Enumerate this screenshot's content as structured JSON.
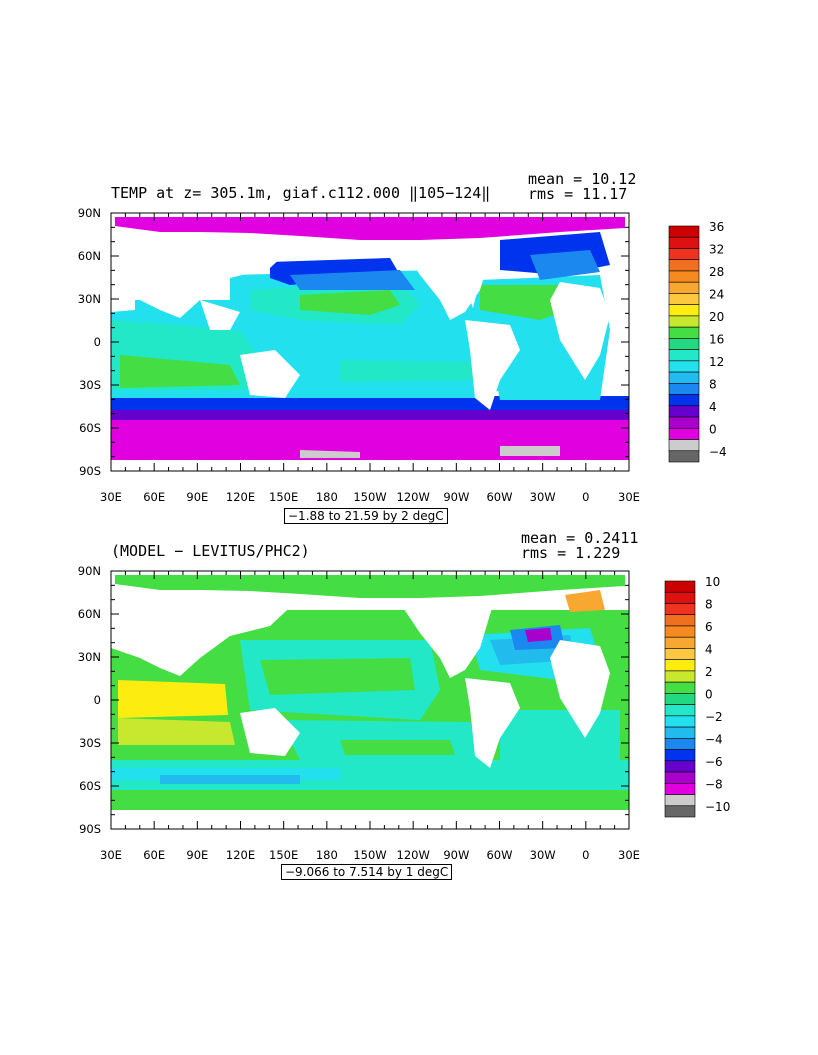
{
  "chart_data": [
    {
      "type": "heatmap",
      "title": "TEMP at z= 305.1m, giaf.c112.000 ‖105−124‖",
      "stats": {
        "mean": "mean = 10.12",
        "rms": "rms = 11.17"
      },
      "contour_info": "−1.88 to 21.59 by 2 degC",
      "x_ticks": [
        "30E",
        "60E",
        "90E",
        "120E",
        "150E",
        "180",
        "150W",
        "120W",
        "90W",
        "60W",
        "30W",
        "0",
        "30E"
      ],
      "y_ticks": [
        "90N",
        "60N",
        "30N",
        "0",
        "30S",
        "60S",
        "90S"
      ],
      "colorbar": {
        "labels": [
          "36",
          "32",
          "28",
          "24",
          "20",
          "16",
          "12",
          "8",
          "4",
          "0",
          "−4"
        ],
        "colors": [
          "#cc0000",
          "#dd1111",
          "#ee3322",
          "#f07020",
          "#f48a20",
          "#f8a830",
          "#fcc840",
          "#fcec10",
          "#c8e830",
          "#44dd44",
          "#22d880",
          "#22e8c8",
          "#22e0ee",
          "#22bbee",
          "#1a88ee",
          "#0033ee",
          "#6600cc",
          "#aa00cc",
          "#e000e0",
          "#cccccc",
          "#666666"
        ]
      },
      "value_range": [
        -1.88,
        21.59
      ],
      "contour_interval": 2,
      "units": "degC"
    },
    {
      "type": "heatmap",
      "title": "(MODEL − LEVITUS/PHC2)",
      "stats": {
        "mean": "mean = 0.2411",
        "rms": "rms = 1.229"
      },
      "contour_info": "−9.066 to 7.514 by 1 degC",
      "x_ticks": [
        "30E",
        "60E",
        "90E",
        "120E",
        "150E",
        "180",
        "150W",
        "120W",
        "90W",
        "60W",
        "30W",
        "0",
        "30E"
      ],
      "y_ticks": [
        "90N",
        "60N",
        "30N",
        "0",
        "30S",
        "60S",
        "90S"
      ],
      "colorbar": {
        "labels": [
          "10",
          "8",
          "6",
          "4",
          "2",
          "0",
          "−2",
          "−4",
          "−6",
          "−8",
          "−10"
        ],
        "colors": [
          "#cc0000",
          "#dd1111",
          "#ee3322",
          "#f07020",
          "#f48a20",
          "#f8a830",
          "#fcc840",
          "#fcec10",
          "#c8e830",
          "#44dd44",
          "#22d880",
          "#22e8c8",
          "#22e0ee",
          "#22bbee",
          "#1a88ee",
          "#0033ee",
          "#6600cc",
          "#aa00cc",
          "#e000e0",
          "#cccccc",
          "#666666"
        ]
      },
      "value_range": [
        -9.066,
        7.514
      ],
      "contour_interval": 1,
      "units": "degC"
    }
  ]
}
